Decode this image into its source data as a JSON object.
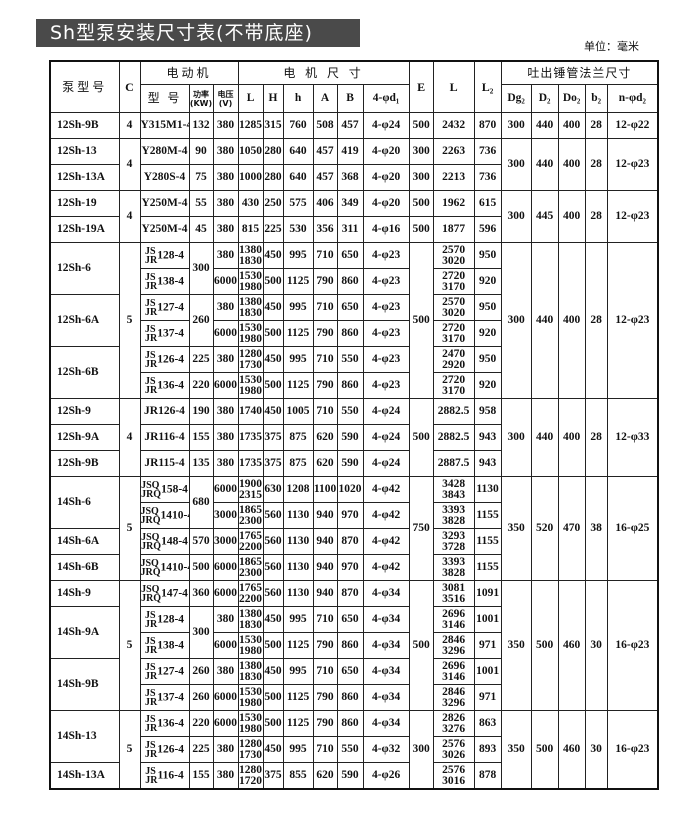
{
  "title": "Sh型泵安装尺寸表(不带底座)",
  "unit": "单位：毫米",
  "header": {
    "pump_model": "泵型号",
    "c": "C",
    "motor": "电动机",
    "motor_dims": "电 机 尺 寸",
    "e": "E",
    "l": "L",
    "l2": "L₂",
    "flange": "吐出锤管法兰尺寸",
    "motor_model": "型 号",
    "power": "功率",
    "power_unit": "(KW)",
    "voltage": "电压",
    "voltage_unit": "(V)",
    "dims": [
      "L",
      "H",
      "h",
      "A",
      "B",
      "4-φd₁"
    ],
    "flange_cols": [
      "Dg₂",
      "D₂",
      "Do₂",
      "b₂",
      "n-φd₂"
    ]
  },
  "rows": [
    [
      "12Sh-9B",
      "4",
      "Y315M1-4",
      "132",
      "380",
      "1285",
      "315",
      "760",
      "508",
      "457",
      "4-φ24",
      "500",
      "2432",
      "870",
      "300",
      "440",
      "400",
      "28",
      "12-φ22"
    ],
    [
      "12Sh-13",
      {
        "v": "4",
        "rs": 2
      },
      "Y280M-4",
      "90",
      "380",
      "1050",
      "280",
      "640",
      "457",
      "419",
      "4-φ20",
      "300",
      "2263",
      "736",
      {
        "v": "300",
        "rs": 2
      },
      {
        "v": "440",
        "rs": 2
      },
      {
        "v": "400",
        "rs": 2
      },
      {
        "v": "28",
        "rs": 2
      },
      {
        "v": "12-φ23",
        "rs": 2
      }
    ],
    [
      "12Sh-13A",
      "Y280S-4",
      "75",
      "380",
      "1000",
      "280",
      "640",
      "457",
      "368",
      "4-φ20",
      "300",
      "2213",
      "736"
    ],
    [
      "12Sh-19",
      {
        "v": "4",
        "rs": 2
      },
      "Y250M-4",
      "55",
      "380",
      "430",
      "250",
      "575",
      "406",
      "349",
      "4-φ20",
      "500",
      "1962",
      "615",
      {
        "v": "300",
        "rs": 2
      },
      {
        "v": "445",
        "rs": 2
      },
      {
        "v": "400",
        "rs": 2
      },
      {
        "v": "28",
        "rs": 2
      },
      {
        "v": "12-φ23",
        "rs": 2
      }
    ],
    [
      "12Sh-19A",
      "Y250M-4",
      "45",
      "380",
      "815",
      "225",
      "530",
      "356",
      "311",
      "4-φ16",
      "500",
      "1877",
      "596"
    ],
    [
      {
        "v": "12Sh-6",
        "rs": 2
      },
      {
        "v": "5",
        "rs": 6
      },
      {
        "p": [
          "JS",
          "JR"
        ],
        "v": "128-4"
      },
      {
        "v": "300",
        "rs": 2
      },
      "380",
      [
        "1380",
        "1830"
      ],
      "450",
      "995",
      "710",
      "650",
      "4-φ23",
      {
        "v": "500",
        "rs": 6
      },
      [
        "2570",
        "3020"
      ],
      "950",
      {
        "v": "300",
        "rs": 6
      },
      {
        "v": "440",
        "rs": 6
      },
      {
        "v": "400",
        "rs": 6
      },
      {
        "v": "28",
        "rs": 6
      },
      {
        "v": "12-φ23",
        "rs": 6
      }
    ],
    [
      {
        "p": [
          "JS",
          "JR"
        ],
        "v": "138-4"
      },
      "6000",
      [
        "1530",
        "1980"
      ],
      "500",
      "1125",
      "790",
      "860",
      "4-φ23",
      [
        "2720",
        "3170"
      ],
      "920"
    ],
    [
      {
        "v": "12Sh-6A",
        "rs": 2
      },
      {
        "p": [
          "JS",
          "JR"
        ],
        "v": "127-4"
      },
      {
        "v": "260",
        "rs": 2
      },
      "380",
      [
        "1380",
        "1830"
      ],
      "450",
      "995",
      "710",
      "650",
      "4-φ23",
      [
        "2570",
        "3020"
      ],
      "950"
    ],
    [
      {
        "p": [
          "JS",
          "JR"
        ],
        "v": "137-4"
      },
      "6000",
      [
        "1530",
        "1980"
      ],
      "500",
      "1125",
      "790",
      "860",
      "4-φ23",
      [
        "2720",
        "3170"
      ],
      "920"
    ],
    [
      {
        "v": "12Sh-6B",
        "rs": 2
      },
      {
        "p": [
          "JS",
          "JR"
        ],
        "v": "126-4"
      },
      "225",
      "380",
      [
        "1280",
        "1730"
      ],
      "450",
      "995",
      "710",
      "550",
      "4-φ23",
      [
        "2470",
        "2920"
      ],
      "950"
    ],
    [
      {
        "p": [
          "JS",
          "JR"
        ],
        "v": "136-4"
      },
      "220",
      "6000",
      [
        "1530",
        "1980"
      ],
      "500",
      "1125",
      "790",
      "860",
      "4-φ23",
      [
        "2720",
        "3170"
      ],
      "920"
    ],
    [
      "12Sh-9",
      {
        "v": "4",
        "rs": 3
      },
      "JR126-4",
      "190",
      "380",
      "1740",
      "450",
      "1005",
      "710",
      "550",
      "4-φ24",
      {
        "v": "500",
        "rs": 3
      },
      "2882.5",
      "958",
      {
        "v": "300",
        "rs": 3
      },
      {
        "v": "440",
        "rs": 3
      },
      {
        "v": "400",
        "rs": 3
      },
      {
        "v": "28",
        "rs": 3
      },
      {
        "v": "12-φ33",
        "rs": 3
      }
    ],
    [
      "12Sh-9A",
      "JR116-4",
      "155",
      "380",
      "1735",
      "375",
      "875",
      "620",
      "590",
      "4-φ24",
      "2882.5",
      "943"
    ],
    [
      "12Sh-9B",
      "JR115-4",
      "135",
      "380",
      "1735",
      "375",
      "875",
      "620",
      "590",
      "4-φ24",
      "2887.5",
      "943"
    ],
    [
      {
        "v": "14Sh-6",
        "rs": 2
      },
      {
        "v": "5",
        "rs": 4
      },
      {
        "p": [
          "JSQ",
          "JRQ"
        ],
        "v": "158-4"
      },
      {
        "v": "680",
        "rs": 2
      },
      "6000",
      [
        "1900",
        "2315"
      ],
      "630",
      "1208",
      "1100",
      "1020",
      "4-φ42",
      {
        "v": "750",
        "rs": 4
      },
      [
        "3428",
        "3843"
      ],
      "1130",
      {
        "v": "350",
        "rs": 4
      },
      {
        "v": "520",
        "rs": 4
      },
      {
        "v": "470",
        "rs": 4
      },
      {
        "v": "38",
        "rs": 4
      },
      {
        "v": "16-φ25",
        "rs": 4
      }
    ],
    [
      {
        "p": [
          "JSQ",
          "JRQ"
        ],
        "v": "1410-4"
      },
      "3000",
      [
        "1865",
        "2300"
      ],
      "560",
      "1130",
      "940",
      "970",
      "4-φ42",
      [
        "3393",
        "3828"
      ],
      "1155"
    ],
    [
      "14Sh-6A",
      {
        "p": [
          "JSQ",
          "JRQ"
        ],
        "v": "148-4"
      },
      "570",
      "3000",
      [
        "1765",
        "2200"
      ],
      "560",
      "1130",
      "940",
      "870",
      "4-φ42",
      [
        "3293",
        "3728"
      ],
      "1155"
    ],
    [
      "14Sh-6B",
      {
        "p": [
          "JSQ",
          "JRQ"
        ],
        "v": "1410-4"
      },
      "500",
      "6000",
      [
        "1865",
        "2300"
      ],
      "560",
      "1130",
      "940",
      "970",
      "4-φ42",
      [
        "3393",
        "3828"
      ],
      "1155"
    ],
    [
      "14Sh-9",
      {
        "v": "5",
        "rs": 5
      },
      {
        "p": [
          "JSQ",
          "JRQ"
        ],
        "v": "147-4"
      },
      "360",
      "6000",
      [
        "1765",
        "2200"
      ],
      "560",
      "1130",
      "940",
      "870",
      "4-φ34",
      {
        "v": "500",
        "rs": 5
      },
      [
        "3081",
        "3516"
      ],
      "1091",
      {
        "v": "350",
        "rs": 5
      },
      {
        "v": "500",
        "rs": 5
      },
      {
        "v": "460",
        "rs": 5
      },
      {
        "v": "30",
        "rs": 5
      },
      {
        "v": "16-φ23",
        "rs": 5
      }
    ],
    [
      {
        "v": "14Sh-9A",
        "rs": 2
      },
      {
        "p": [
          "JS",
          "JR"
        ],
        "v": "128-4"
      },
      {
        "v": "300",
        "rs": 2
      },
      "380",
      [
        "1380",
        "1830"
      ],
      "450",
      "995",
      "710",
      "650",
      "4-φ34",
      [
        "2696",
        "3146"
      ],
      "1001"
    ],
    [
      {
        "p": [
          "JS",
          "JR"
        ],
        "v": "138-4"
      },
      "6000",
      [
        "1530",
        "1980"
      ],
      "500",
      "1125",
      "790",
      "860",
      "4-φ34",
      [
        "2846",
        "3296"
      ],
      "971"
    ],
    [
      {
        "v": "14Sh-9B",
        "rs": 2
      },
      {
        "p": [
          "JS",
          "JR"
        ],
        "v": "127-4"
      },
      "260",
      "380",
      [
        "1380",
        "1830"
      ],
      "450",
      "995",
      "710",
      "650",
      "4-φ34",
      [
        "2696",
        "3146"
      ],
      "1001"
    ],
    [
      {
        "p": [
          "JS",
          "JR"
        ],
        "v": "137-4"
      },
      "260",
      "6000",
      [
        "1530",
        "1980"
      ],
      "500",
      "1125",
      "790",
      "860",
      "4-φ34",
      [
        "2846",
        "3296"
      ],
      "971"
    ],
    [
      {
        "v": "14Sh-13",
        "rs": 2
      },
      {
        "v": "5",
        "rs": 3
      },
      {
        "p": [
          "JS",
          "JR"
        ],
        "v": "136-4"
      },
      "220",
      "6000",
      [
        "1530",
        "1980"
      ],
      "500",
      "1125",
      "790",
      "860",
      "4-φ34",
      {
        "v": "300",
        "rs": 3
      },
      [
        "2826",
        "3276"
      ],
      "863",
      {
        "v": "350",
        "rs": 3
      },
      {
        "v": "500",
        "rs": 3
      },
      {
        "v": "460",
        "rs": 3
      },
      {
        "v": "30",
        "rs": 3
      },
      {
        "v": "16-φ23",
        "rs": 3
      }
    ],
    [
      {
        "p": [
          "JS",
          "JR"
        ],
        "v": "126-4"
      },
      "225",
      "380",
      [
        "1280",
        "1730"
      ],
      "450",
      "995",
      "710",
      "550",
      "4-φ32",
      [
        "2576",
        "3026"
      ],
      "893"
    ],
    [
      "14Sh-13A",
      {
        "p": [
          "JS",
          "JR"
        ],
        "v": "116-4"
      },
      "155",
      "380",
      [
        "1280",
        "1720"
      ],
      "375",
      "855",
      "620",
      "590",
      "4-φ26",
      [
        "2576",
        "3016"
      ],
      "878"
    ]
  ]
}
